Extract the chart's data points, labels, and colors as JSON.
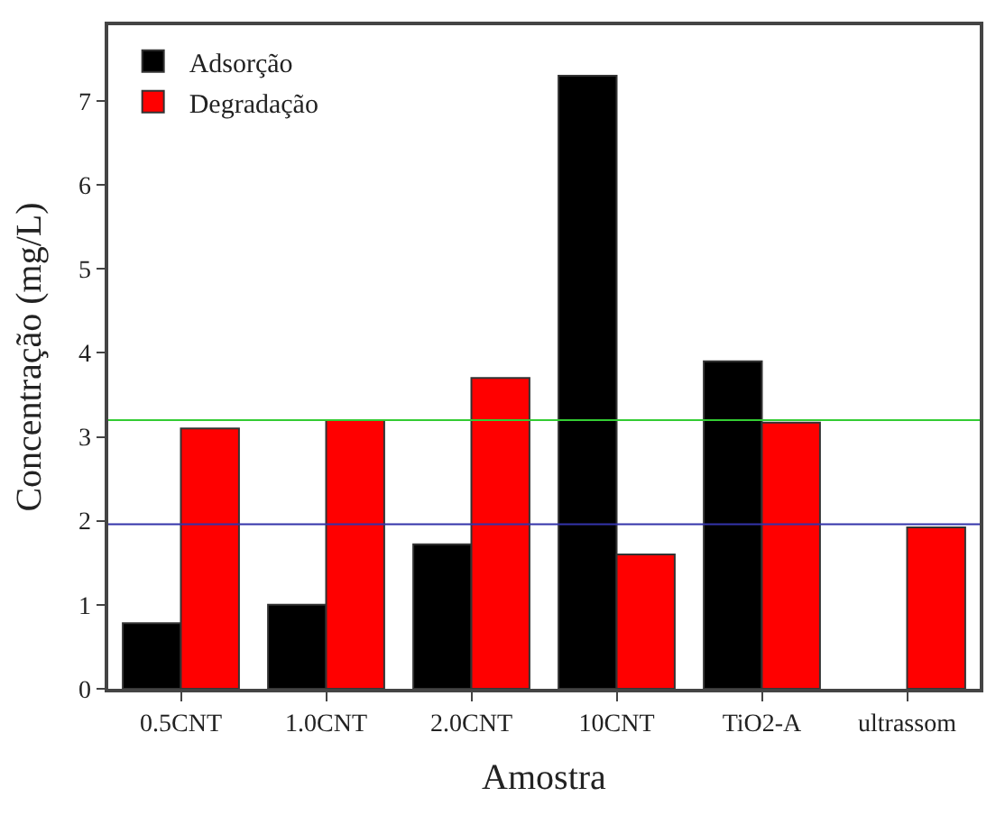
{
  "chart_data": {
    "type": "bar",
    "xlabel": "Amostra",
    "ylabel": "Concentração (mg/L)",
    "categories": [
      "0.5CNT",
      "1.0CNT",
      "2.0CNT",
      "10CNT",
      "TiO2-A",
      "ultrassom"
    ],
    "series": [
      {
        "name": "Adsorção",
        "color": "#000000",
        "values": [
          0.78,
          1.0,
          1.72,
          7.3,
          3.9,
          null
        ]
      },
      {
        "name": "Degradação",
        "color": "#ff0000",
        "values": [
          3.1,
          3.2,
          3.7,
          1.6,
          3.17,
          1.92
        ]
      }
    ],
    "ylim": [
      0,
      7.9
    ],
    "yticks": [
      0,
      1,
      2,
      3,
      4,
      5,
      6,
      7
    ],
    "ref_lines": [
      {
        "axis": "y",
        "value": 3.2,
        "color": "#33cc33"
      },
      {
        "axis": "y",
        "value": 1.96,
        "color": "#3333aa"
      }
    ],
    "legend": "top left"
  }
}
